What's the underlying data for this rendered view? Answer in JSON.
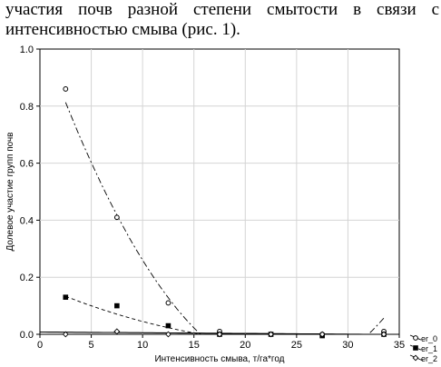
{
  "document": {
    "line1": "участия почв разной степени смытости в связи с",
    "line2": "интенсивностью смыва (рис. 1)."
  },
  "chart_data": {
    "type": "scatter",
    "xlabel": "Интенсивность смыва, т/га*год",
    "ylabel": "Долевое участие групп почв",
    "xlim": [
      0,
      35
    ],
    "ylim": [
      0,
      1.0
    ],
    "xticks": [
      "0",
      "5",
      "10",
      "15",
      "20",
      "25",
      "30",
      "35"
    ],
    "yticks": [
      "0.0",
      "0.2",
      "0.4",
      "0.6",
      "0.8",
      "1.0"
    ],
    "grid": true,
    "legend_position": "bottom-right outside",
    "x": [
      2.5,
      7.5,
      12.5,
      17.5,
      22.5,
      27.5,
      33.5
    ],
    "series": [
      {
        "name": "er_0",
        "marker": "circle",
        "values": [
          0.86,
          0.41,
          0.11,
          0.01,
          0.0,
          0.0,
          0.01
        ],
        "fit": {
          "kind": "quadratic",
          "coef": [
            1.05,
            -0.1,
            0.0021
          ],
          "x_range": [
            2.5,
            33.5
          ],
          "line": "dash-dot"
        }
      },
      {
        "name": "er_1",
        "marker": "square",
        "values": [
          0.13,
          0.1,
          0.03,
          0.0,
          0.0,
          -0.005,
          0.0
        ],
        "fit": {
          "kind": "quadratic",
          "coef": [
            0.17,
            -0.0155,
            0.0003
          ],
          "x_range": [
            2.5,
            33.5
          ],
          "line": "dashed"
        }
      },
      {
        "name": "er_2",
        "marker": "diamond",
        "values": [
          0.0,
          0.01,
          0.0,
          0.0,
          0.0,
          0.0,
          0.0
        ],
        "fit": {
          "kind": "linear",
          "coef": [
            0.008,
            -0.00025
          ],
          "x_range": [
            0,
            35
          ],
          "line": "solid"
        }
      }
    ]
  }
}
